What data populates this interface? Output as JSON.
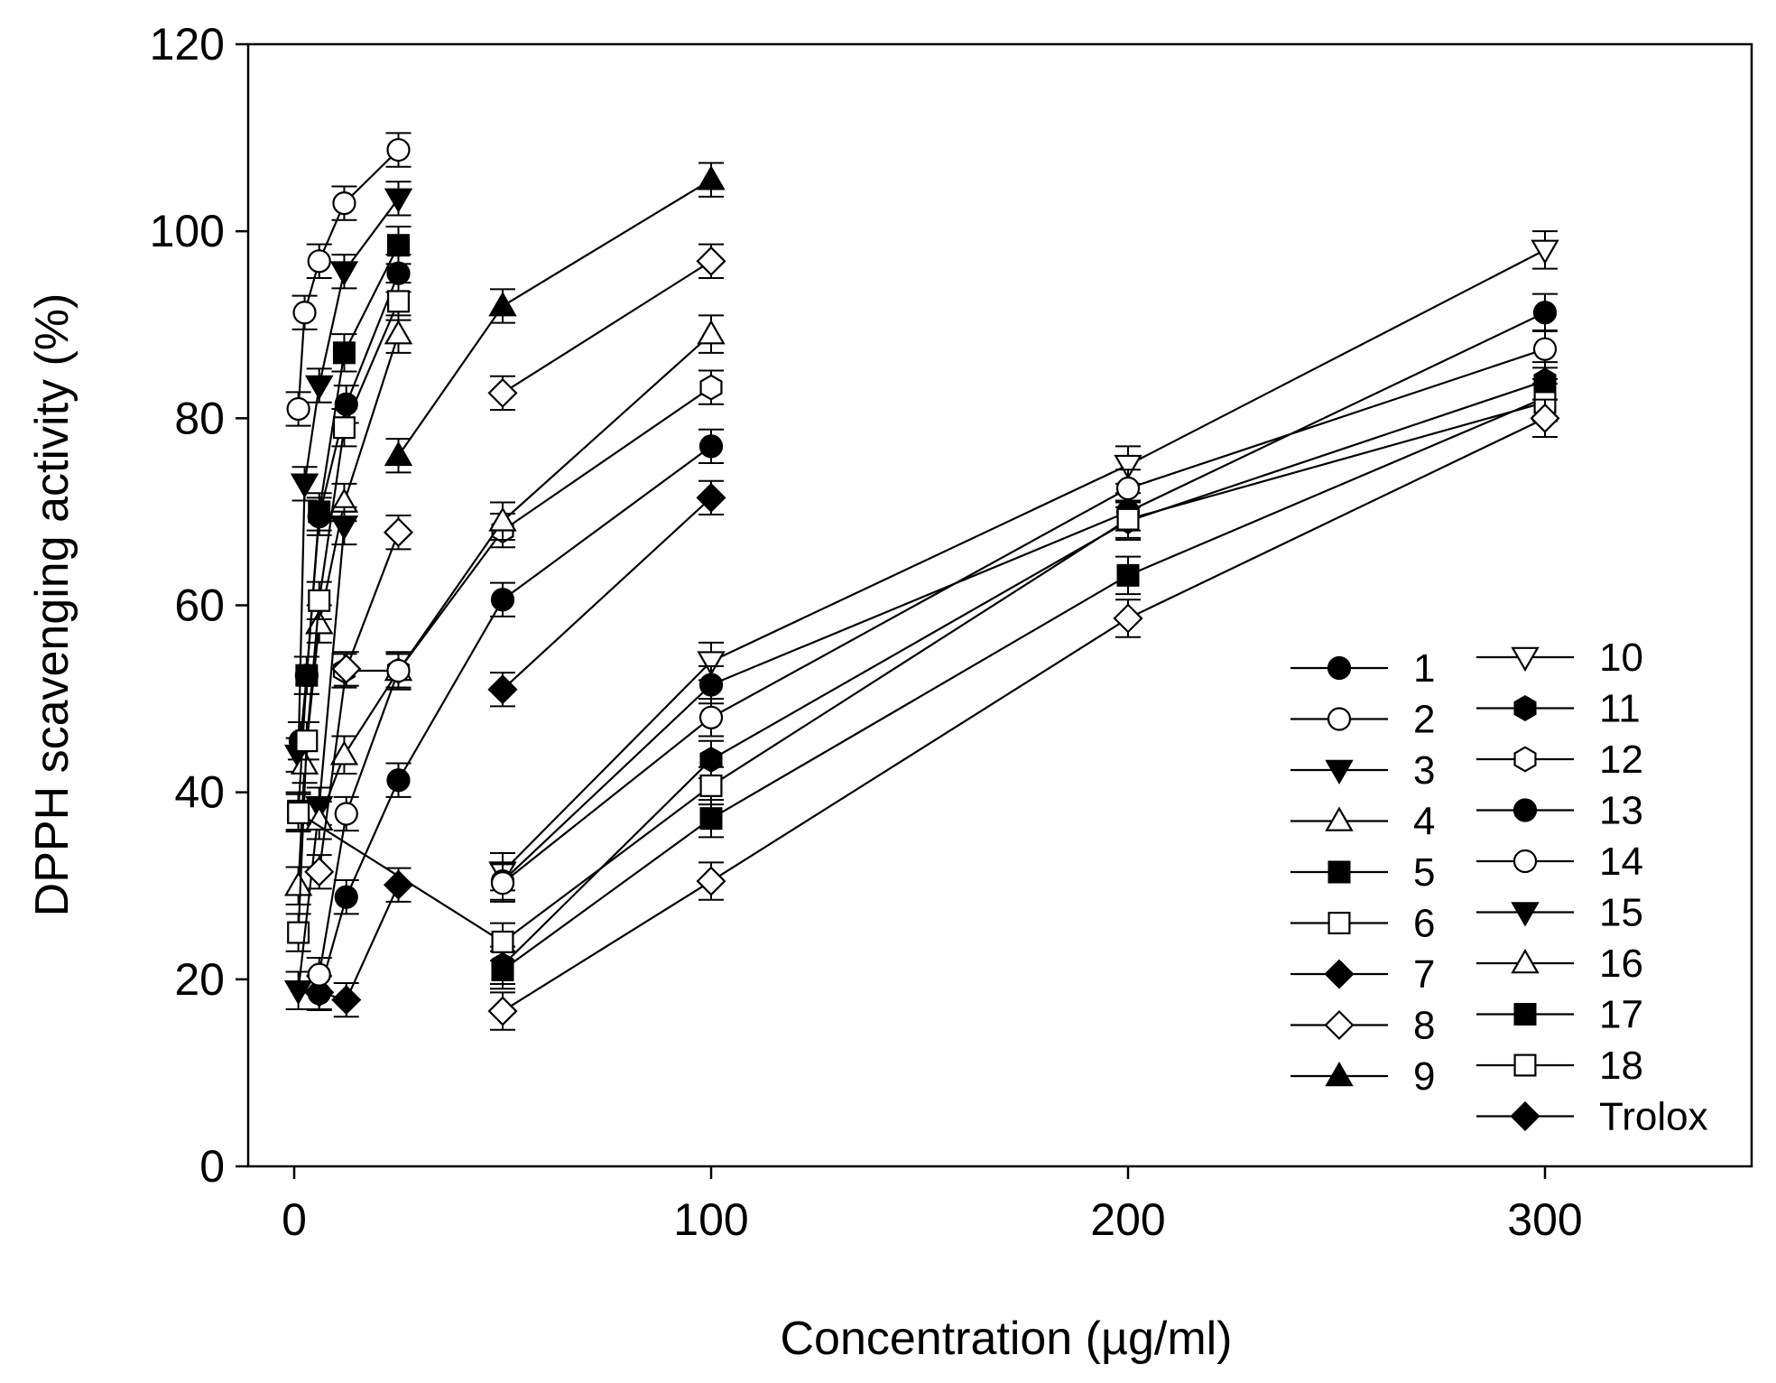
{
  "chart_data": {
    "type": "line",
    "title": "",
    "xlabel": "Concentration (µg/ml)",
    "ylabel": "DPPH scavenging activity (%)",
    "xlim": [
      -13,
      351
    ],
    "ylim": [
      0,
      120
    ],
    "xticks": [
      0,
      100,
      200,
      300
    ],
    "yticks": [
      0,
      20,
      40,
      60,
      80,
      100,
      120
    ],
    "grid": false,
    "legend_position": "bottom-right",
    "series": [
      {
        "name": "1",
        "marker": "circle",
        "fill": "black",
        "x": [
          1.5,
          3,
          6,
          12.5,
          25
        ],
        "y": [
          45.5,
          52.5,
          69.5,
          81.5,
          95.5
        ],
        "err": 2
      },
      {
        "name": "2",
        "marker": "circle",
        "fill": "white",
        "x": [
          1,
          2.5,
          6,
          12,
          25
        ],
        "y": [
          81,
          91.3,
          96.8,
          103,
          108.7
        ],
        "err": 1.8
      },
      {
        "name": "3",
        "marker": "triangle-down",
        "fill": "black",
        "x": [
          1,
          2.5,
          6,
          12,
          25
        ],
        "y": [
          44,
          73,
          83.5,
          95.7,
          103.5
        ],
        "err": 1.8
      },
      {
        "name": "4",
        "marker": "triangle-up",
        "fill": "white",
        "x": [
          1,
          2.5,
          6,
          12,
          25
        ],
        "y": [
          30,
          43,
          58,
          71,
          89
        ],
        "err": 2
      },
      {
        "name": "5",
        "marker": "square",
        "fill": "black",
        "x": [
          1,
          3,
          6,
          12,
          25
        ],
        "y": [
          38,
          52.5,
          70,
          87,
          98.5
        ],
        "err": 2
      },
      {
        "name": "6",
        "marker": "square",
        "fill": "white",
        "x": [
          1,
          3,
          6,
          12,
          25
        ],
        "y": [
          25,
          45.5,
          60.5,
          79,
          92.5
        ],
        "err": 2
      },
      {
        "name": "7",
        "marker": "diamond",
        "fill": "black",
        "x": [
          50,
          100
        ],
        "y": [
          51,
          71.5
        ],
        "err": 1.8
      },
      {
        "name": "8",
        "marker": "diamond",
        "fill": "white",
        "x": [
          50,
          100
        ],
        "y": [
          82.7,
          96.8
        ],
        "err": 1.8
      },
      {
        "name": "9",
        "marker": "triangle-up",
        "fill": "black",
        "x": [
          25,
          50,
          100
        ],
        "y": [
          76,
          92,
          105.5
        ],
        "err": 1.8
      },
      {
        "name": "10",
        "marker": "triangle-down",
        "fill": "white",
        "x": [
          50,
          100,
          200,
          300
        ],
        "y": [
          31.5,
          54,
          75,
          98
        ],
        "err": 2
      },
      {
        "name": "11",
        "marker": "hexagon",
        "fill": "black",
        "x": [
          50,
          100,
          200,
          300
        ],
        "y": [
          21.5,
          43.5,
          69,
          84
        ],
        "err": 2
      },
      {
        "name": "12",
        "marker": "hexagon",
        "fill": "white",
        "x": [
          12,
          25,
          50,
          100
        ],
        "y": [
          53,
          53,
          68,
          83.3
        ],
        "err": 1.8
      },
      {
        "name": "13",
        "marker": "circle",
        "fill": "black",
        "x": [
          50,
          100,
          200,
          300
        ],
        "y": [
          30.5,
          51.5,
          70,
          91.3
        ],
        "err": 2
      },
      {
        "name": "14",
        "marker": "circle",
        "fill": "white",
        "x": [
          50,
          100,
          200,
          300
        ],
        "y": [
          30.3,
          48,
          72.5,
          87.4
        ],
        "err": 2
      },
      {
        "name": "15",
        "marker": "triangle-down",
        "fill": "black",
        "x": [
          1,
          6,
          12
        ],
        "y": [
          18.8,
          38.5,
          68.5
        ],
        "err": 2
      },
      {
        "name": "16",
        "marker": "triangle-up",
        "fill": "white",
        "x": [
          6,
          12,
          25,
          50,
          100
        ],
        "y": [
          37,
          44,
          53,
          69,
          89
        ],
        "err": 2
      },
      {
        "name": "17",
        "marker": "square",
        "fill": "black",
        "x": [
          50,
          100,
          200,
          300
        ],
        "y": [
          21,
          37.2,
          63.2,
          82.2
        ],
        "err": 2
      },
      {
        "name": "18",
        "marker": "square",
        "fill": "white",
        "x": [
          1,
          50,
          100,
          200,
          300
        ],
        "y": [
          37.8,
          24,
          40.7,
          69.2,
          81.7
        ],
        "err": 2
      },
      {
        "name": "Trolox",
        "marker": "diamond",
        "fill": "black",
        "x": [
          6,
          12.5,
          25
        ],
        "y": [
          18.6,
          17.8,
          30.1
        ],
        "err": 1.8
      },
      {
        "name": "",
        "marker": "circle",
        "fill": "black",
        "x": [
          6,
          12.5,
          25,
          50,
          100
        ],
        "y": [
          18.5,
          28.8,
          41.3,
          60.6,
          77
        ],
        "err": 1.8
      },
      {
        "name": "",
        "marker": "circle",
        "fill": "white",
        "x": [
          6,
          12.5,
          25
        ],
        "y": [
          20.5,
          37.7,
          53
        ],
        "err": 1.8
      },
      {
        "name": "",
        "marker": "diamond",
        "fill": "white",
        "x": [
          6,
          12.5,
          25
        ],
        "y": [
          31.5,
          53.2,
          67.8
        ],
        "err": 1.8
      },
      {
        "name": "",
        "marker": "diamond",
        "fill": "white",
        "x": [
          50,
          100,
          200,
          300
        ],
        "y": [
          16.6,
          30.5,
          58.6,
          80
        ],
        "err": 2
      }
    ]
  }
}
